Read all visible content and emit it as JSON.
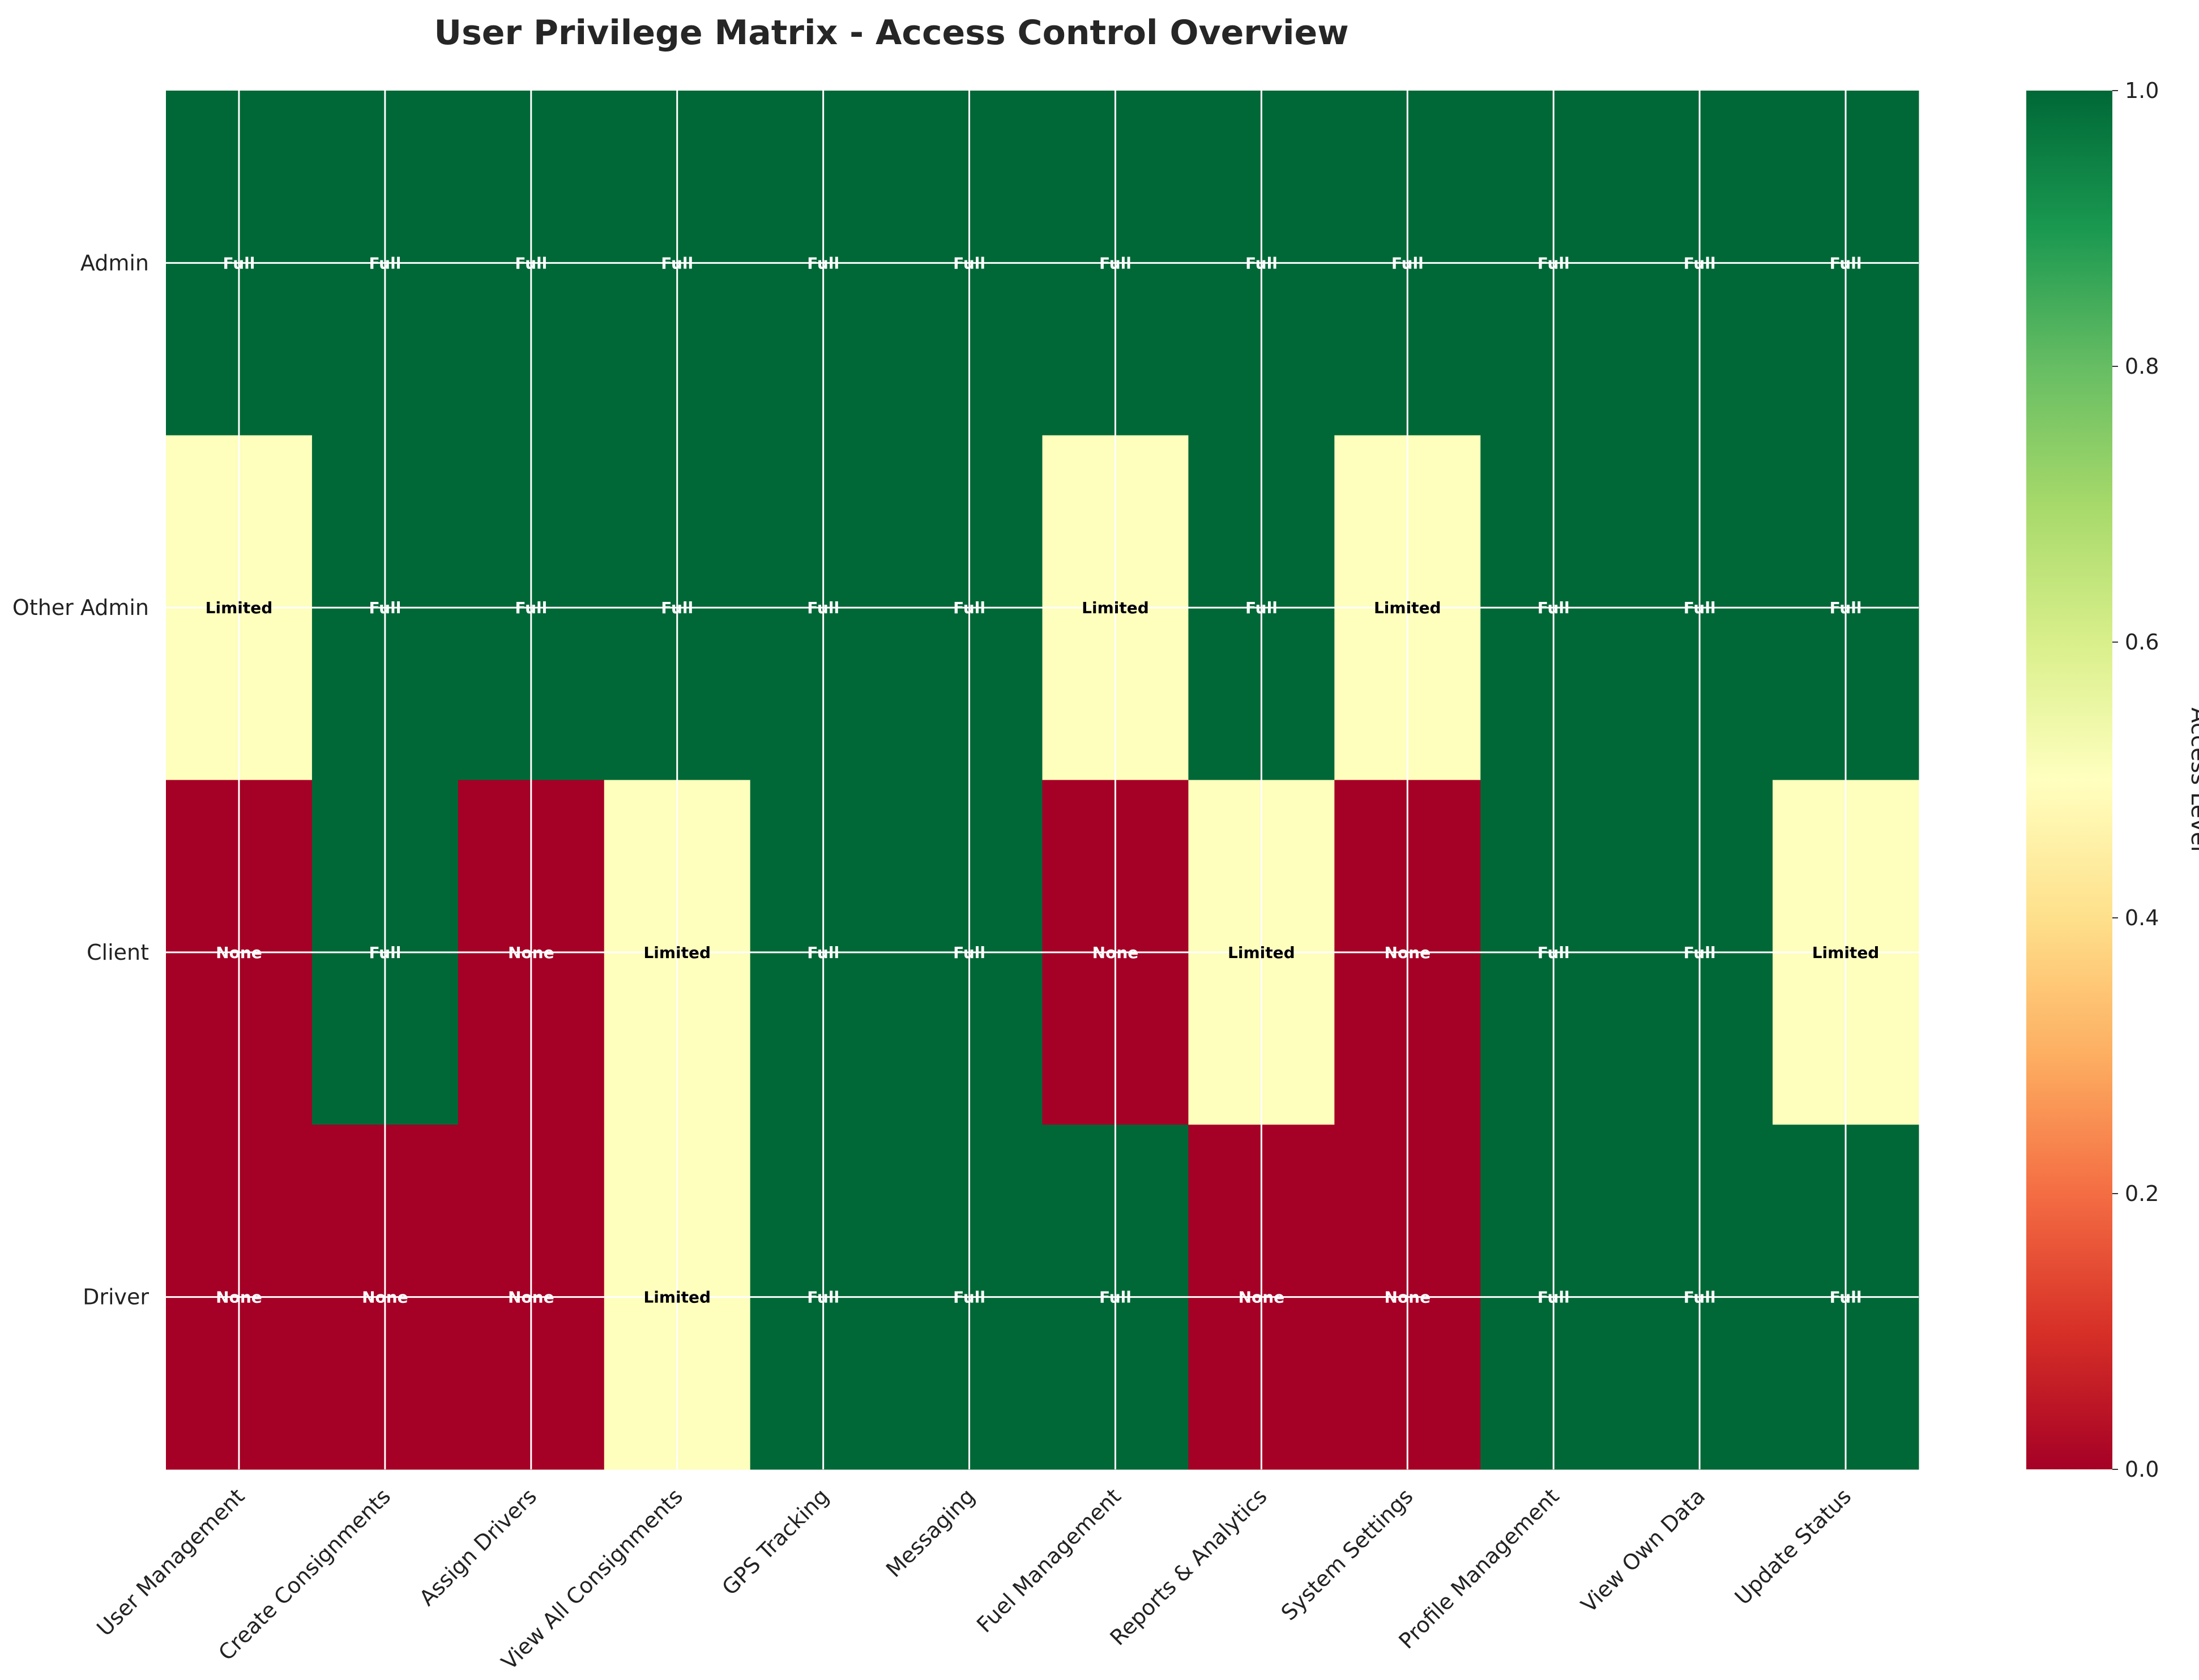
{
  "chart_data": {
    "type": "heatmap",
    "title": "User Privilege Matrix - Access Control Overview",
    "rows": [
      "Admin",
      "Other Admin",
      "Client",
      "Driver"
    ],
    "columns": [
      "User Management",
      "Create Consignments",
      "Assign Drivers",
      "View All Consignments",
      "GPS Tracking",
      "Messaging",
      "Fuel Management",
      "Reports & Analytics",
      "System Settings",
      "Profile Management",
      "View Own Data",
      "Update Status"
    ],
    "values": [
      [
        1,
        1,
        1,
        1,
        1,
        1,
        1,
        1,
        1,
        1,
        1,
        1
      ],
      [
        0.5,
        1,
        1,
        1,
        1,
        1,
        0.5,
        1,
        0.5,
        1,
        1,
        1
      ],
      [
        0,
        1,
        0,
        0.5,
        1,
        1,
        0,
        0.5,
        0,
        1,
        1,
        0.5
      ],
      [
        0,
        0,
        0,
        0.5,
        1,
        1,
        1,
        0,
        0,
        1,
        1,
        1
      ]
    ],
    "level_labels": {
      "1": "Full",
      "0.5": "Limited",
      "0": "None"
    },
    "colormap": "RdYlGn",
    "colors": {
      "full": "#006837",
      "limited": "#fefebd",
      "none": "#a50026"
    },
    "colorbar": {
      "label": "Access Level",
      "range": [
        0.0,
        1.0
      ],
      "ticks": [
        "0.0",
        "0.2",
        "0.4",
        "0.6",
        "0.8",
        "1.0"
      ]
    },
    "grid": true
  }
}
